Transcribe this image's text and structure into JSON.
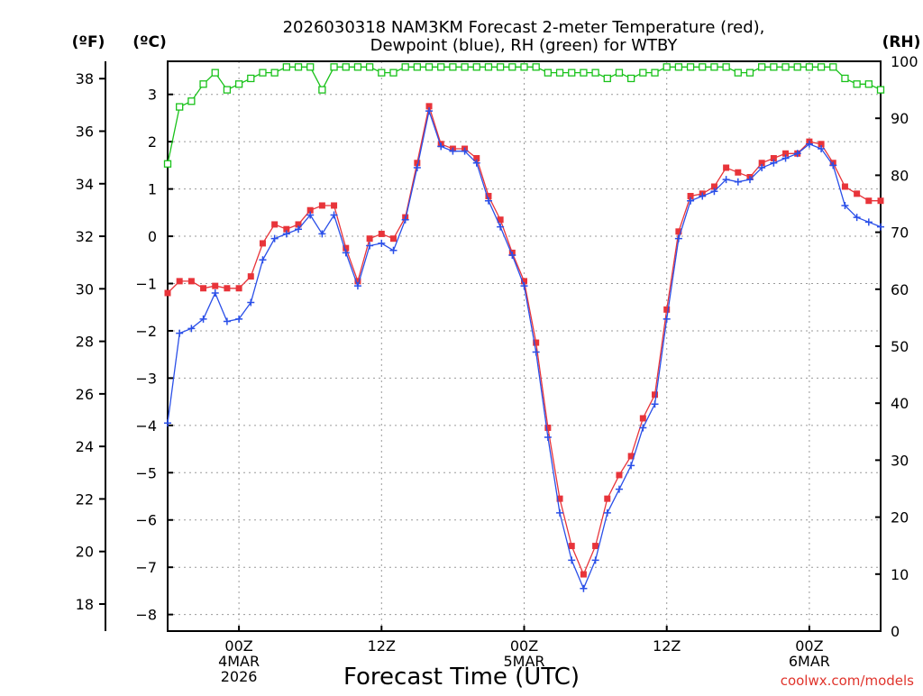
{
  "chart_data": {
    "type": "line",
    "title_line1": "2026030318 NAM3KM Forecast 2-meter Temperature (red),",
    "title_line2": "Dewpoint (blue), RH (green) for WTBY",
    "xlabel": "Forecast Time (UTC)",
    "credit": "coolwx.com/models",
    "units": {
      "left_f": "(ºF)",
      "left_c": "(ºC)",
      "right": "(RH)"
    },
    "y_celsius": {
      "min": -8.35,
      "max": 3.7,
      "ticks": [
        3,
        2,
        1,
        0,
        -1,
        -2,
        -3,
        -4,
        -5,
        -6,
        -7,
        -8
      ]
    },
    "y_fahrenheit": {
      "ticks": [
        38,
        36,
        34,
        32,
        30,
        28,
        26,
        24,
        22,
        20,
        18
      ]
    },
    "y_rh": {
      "min": 0,
      "max": 100,
      "ticks": [
        100,
        90,
        80,
        70,
        60,
        50,
        40,
        30,
        20,
        10,
        0
      ]
    },
    "x_hours": {
      "min": 0,
      "max": 60
    },
    "x_ticks": [
      {
        "hour": 6,
        "lines": [
          "00Z",
          "4MAR",
          "2026"
        ]
      },
      {
        "hour": 18,
        "lines": [
          "12Z"
        ]
      },
      {
        "hour": 30,
        "lines": [
          "00Z",
          "5MAR"
        ]
      },
      {
        "hour": 42,
        "lines": [
          "12Z"
        ]
      },
      {
        "hour": 54,
        "lines": [
          "00Z",
          "6MAR"
        ]
      }
    ],
    "x_grid_hours": [
      6,
      18,
      30,
      42,
      54
    ],
    "series": [
      {
        "name": "Temperature",
        "color": "#e8343a",
        "units": "C",
        "values": [
          -1.2,
          -0.95,
          -0.95,
          -1.1,
          -1.05,
          -1.1,
          -1.1,
          -0.85,
          -0.15,
          0.25,
          0.15,
          0.25,
          0.55,
          0.65,
          0.65,
          -0.25,
          -0.95,
          -0.05,
          0.05,
          -0.05,
          0.4,
          1.55,
          2.75,
          1.95,
          1.85,
          1.85,
          1.65,
          0.85,
          0.35,
          -0.35,
          -0.95,
          -2.25,
          -4.05,
          -5.55,
          -6.55,
          -7.15,
          -6.55,
          -5.55,
          -5.05,
          -4.65,
          -3.85,
          -3.35,
          -1.55,
          0.1,
          0.85,
          0.9,
          1.05,
          1.45,
          1.35,
          1.25,
          1.55,
          1.65,
          1.75,
          1.75,
          2.0,
          1.95,
          1.55,
          1.05,
          0.9,
          0.75,
          0.75
        ]
      },
      {
        "name": "Dewpoint",
        "color": "#2a4fe8",
        "units": "C",
        "values": [
          -3.95,
          -2.05,
          -1.95,
          -1.75,
          -1.2,
          -1.8,
          -1.75,
          -1.4,
          -0.5,
          -0.05,
          0.05,
          0.15,
          0.45,
          0.05,
          0.45,
          -0.35,
          -1.05,
          -0.2,
          -0.15,
          -0.3,
          0.35,
          1.45,
          2.65,
          1.9,
          1.8,
          1.8,
          1.55,
          0.75,
          0.2,
          -0.4,
          -1.05,
          -2.45,
          -4.25,
          -5.85,
          -6.85,
          -7.45,
          -6.85,
          -5.85,
          -5.35,
          -4.85,
          -4.05,
          -3.55,
          -1.75,
          -0.05,
          0.75,
          0.85,
          0.95,
          1.2,
          1.15,
          1.2,
          1.45,
          1.55,
          1.65,
          1.75,
          1.95,
          1.85,
          1.5,
          0.65,
          0.4,
          0.3,
          0.2
        ]
      },
      {
        "name": "RH",
        "color": "#19c21a",
        "units": "%",
        "values": [
          82,
          92,
          93,
          96,
          98,
          95,
          96,
          97,
          98,
          98,
          99,
          99,
          99,
          95,
          99,
          99,
          99,
          99,
          98,
          98,
          99,
          99,
          99,
          99,
          99,
          99,
          99,
          99,
          99,
          99,
          99,
          99,
          98,
          98,
          98,
          98,
          98,
          97,
          98,
          97,
          98,
          98,
          99,
          99,
          99,
          99,
          99,
          99,
          98,
          98,
          99,
          99,
          99,
          99,
          99,
          99,
          99,
          97,
          96,
          96,
          95
        ]
      }
    ]
  }
}
